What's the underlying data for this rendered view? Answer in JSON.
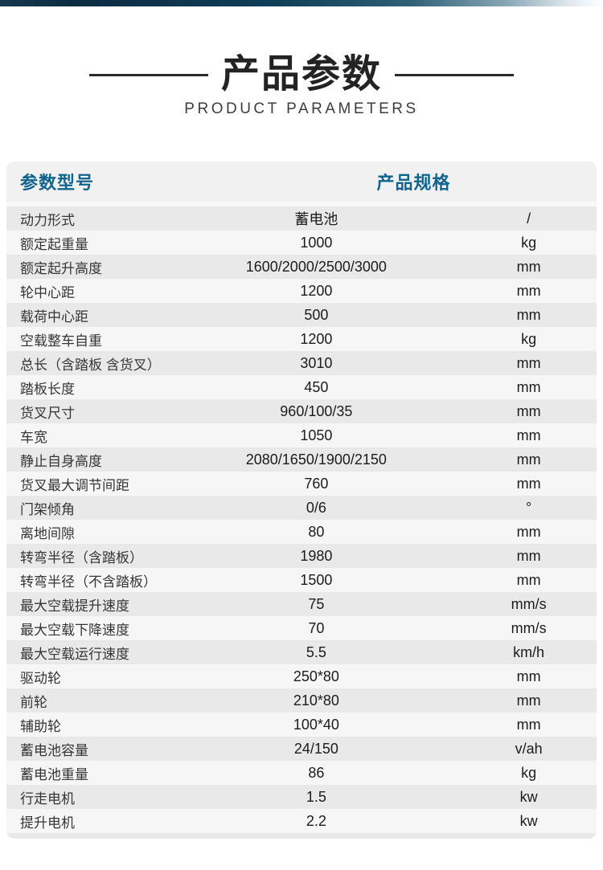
{
  "header": {
    "title": "产品参数",
    "subtitle": "PRODUCT PARAMETERS"
  },
  "table": {
    "header": {
      "parameter": "参数型号",
      "spec": "产品规格"
    },
    "rows": [
      {
        "label": "动力形式",
        "value": "蓄电池",
        "unit": "/"
      },
      {
        "label": "额定起重量",
        "value": "1000",
        "unit": "kg"
      },
      {
        "label": "额定起升高度",
        "value": "1600/2000/2500/3000",
        "unit": "mm"
      },
      {
        "label": "轮中心距",
        "value": "1200",
        "unit": "mm"
      },
      {
        "label": "载荷中心距",
        "value": "500",
        "unit": "mm"
      },
      {
        "label": "空载整车自重",
        "value": "1200",
        "unit": "kg"
      },
      {
        "label": "总长（含踏板 含货叉）",
        "value": "3010",
        "unit": "mm"
      },
      {
        "label": "踏板长度",
        "value": "450",
        "unit": "mm"
      },
      {
        "label": "货叉尺寸",
        "value": "960/100/35",
        "unit": "mm"
      },
      {
        "label": "车宽",
        "value": "1050",
        "unit": "mm"
      },
      {
        "label": "静止自身高度",
        "value": "2080/1650/1900/2150",
        "unit": "mm"
      },
      {
        "label": "货叉最大调节间距",
        "value": "760",
        "unit": "mm"
      },
      {
        "label": "门架倾角",
        "value": "0/6",
        "unit": "°"
      },
      {
        "label": "离地间隙",
        "value": "80",
        "unit": "mm"
      },
      {
        "label": "转弯半径（含踏板）",
        "value": "1980",
        "unit": "mm"
      },
      {
        "label": "转弯半径（不含踏板）",
        "value": "1500",
        "unit": "mm"
      },
      {
        "label": "最大空载提升速度",
        "value": "75",
        "unit": "mm/s"
      },
      {
        "label": "最大空载下降速度",
        "value": "70",
        "unit": "mm/s"
      },
      {
        "label": "最大空载运行速度",
        "value": "5.5",
        "unit": "km/h"
      },
      {
        "label": "驱动轮",
        "value": "250*80",
        "unit": "mm"
      },
      {
        "label": "前轮",
        "value": "210*80",
        "unit": "mm"
      },
      {
        "label": "辅助轮",
        "value": "100*40",
        "unit": "mm"
      },
      {
        "label": "蓄电池容量",
        "value": "24/150",
        "unit": "v/ah"
      },
      {
        "label": "蓄电池重量",
        "value": "86",
        "unit": "kg"
      },
      {
        "label": "行走电机",
        "value": "1.5",
        "unit": "kw"
      },
      {
        "label": "提升电机",
        "value": "2.2",
        "unit": "kw"
      }
    ]
  },
  "colors": {
    "accent_heading": "#10648e",
    "topbar_dark": "#0c2c41",
    "title_text": "#232323",
    "table_header_bg": "#f1f1f1",
    "row_odd_bg": "#e9e9e9",
    "row_even_bg": "#f6f6f6"
  }
}
